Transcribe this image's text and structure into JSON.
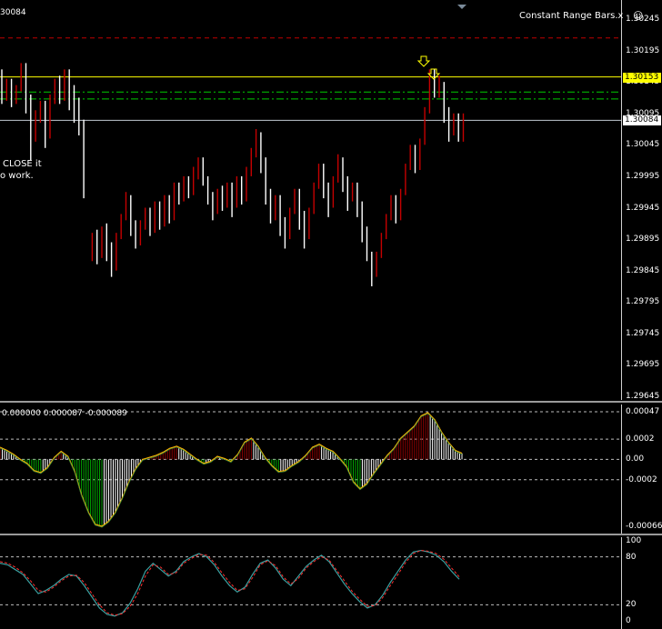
{
  "chart": {
    "symbol_fragment": "30084",
    "indicator_name": "Constant Range Bars.x",
    "smiley_icon": "smiley-icon",
    "note_line1": "CLOSE it",
    "note_line2": "o work."
  },
  "price_axis": {
    "ticks": [
      "1.30245",
      "1.30195",
      "1.30145",
      "1.30095",
      "1.30045",
      "1.29995",
      "1.29945",
      "1.29895",
      "1.29845",
      "1.29795",
      "1.29745",
      "1.29695",
      "1.29645"
    ],
    "range": [
      1.29645,
      1.30245
    ],
    "boxes": [
      {
        "label": "1.30153",
        "value": 1.30153,
        "bg": "#ffff00",
        "fg": "#000000"
      },
      {
        "label": "1.30084",
        "value": 1.30084,
        "bg": "#ffffff",
        "fg": "#000000"
      }
    ]
  },
  "levels": {
    "red_dashed": 1.30215,
    "yellow_solid": 1.30153,
    "green_dashdot_1": 1.30129,
    "green_dashdot_2": 1.30118,
    "grey_solid": 1.30084
  },
  "colors": {
    "bull": "#c40000",
    "bear": "#ffffff",
    "level_red": "#c00000",
    "level_yellow": "#ffff00",
    "level_green": "#00cc00",
    "level_grey": "#c0c8d0",
    "osc_pos": "#8b0000",
    "osc_neg": "#00aa00",
    "osc_line": "#ffb000",
    "stoch_main": "#3aa0a0",
    "stoch_signal": "#ff3030"
  },
  "oscillator": {
    "label": "0.000000 0.000087 -0.000089",
    "ticks": [
      "0.00047",
      "0.0002",
      "0.00",
      "-0.0002",
      "-0.00066"
    ],
    "range": [
      -0.00066,
      0.00047
    ],
    "levels": [
      0.00047,
      0.0002,
      0.0,
      -0.0002
    ],
    "points": [
      0.00012,
      9e-05,
      5e-05,
      0.0,
      -4e-05,
      -0.00011,
      -0.00013,
      -8e-05,
      2e-05,
      8e-05,
      3e-05,
      -0.00012,
      -0.00035,
      -0.00052,
      -0.00064,
      -0.00066,
      -0.00061,
      -0.00052,
      -0.00038,
      -0.00022,
      -9e-05,
      0.0,
      2e-05,
      4e-05,
      7e-05,
      0.00011,
      0.00013,
      0.0001,
      5e-05,
      0.0,
      -4e-05,
      -2e-05,
      3e-05,
      1e-05,
      -2e-05,
      5e-05,
      0.00017,
      0.00021,
      0.00013,
      2e-05,
      -6e-05,
      -0.00012,
      -0.00011,
      -6e-05,
      -2e-05,
      4e-05,
      0.00012,
      0.00015,
      0.00011,
      8e-05,
      1e-05,
      -7e-05,
      -0.00022,
      -0.00029,
      -0.00024,
      -0.00014,
      -5e-05,
      4e-05,
      0.00011,
      0.00021,
      0.00027,
      0.00033,
      0.00043,
      0.00046,
      0.00039,
      0.00027,
      0.00017,
      9e-05,
      6e-05
    ]
  },
  "stochastic": {
    "ticks": [
      "100",
      "80",
      "20",
      "0"
    ],
    "levels": [
      80,
      20
    ],
    "main": [
      72,
      70,
      64,
      58,
      46,
      34,
      38,
      44,
      52,
      58,
      56,
      44,
      30,
      16,
      8,
      6,
      10,
      22,
      40,
      62,
      72,
      64,
      56,
      62,
      74,
      80,
      84,
      80,
      70,
      56,
      44,
      36,
      42,
      58,
      72,
      76,
      66,
      52,
      44,
      56,
      68,
      76,
      82,
      74,
      60,
      46,
      34,
      24,
      16,
      20,
      32,
      48,
      62,
      76,
      86,
      88,
      86,
      82,
      74,
      62,
      52
    ],
    "signal": [
      74,
      72,
      67,
      60,
      50,
      38,
      36,
      42,
      50,
      56,
      57,
      48,
      34,
      20,
      10,
      7,
      9,
      18,
      34,
      56,
      70,
      67,
      58,
      60,
      72,
      78,
      83,
      82,
      73,
      60,
      48,
      38,
      40,
      54,
      70,
      75,
      69,
      55,
      46,
      53,
      66,
      74,
      80,
      76,
      63,
      50,
      37,
      27,
      18,
      19,
      29,
      44,
      58,
      73,
      84,
      88,
      87,
      84,
      77,
      66,
      55
    ]
  },
  "bars": [
    [
      1.3016,
      1.30125,
      1.30165,
      1.3011
    ],
    [
      1.30125,
      1.3014,
      1.3015,
      1.30115
    ],
    [
      1.3014,
      1.3012,
      1.3015,
      1.30105
    ],
    [
      1.3012,
      1.30135,
      1.3014,
      1.3011
    ],
    [
      1.30135,
      1.3017,
      1.30175,
      1.3013
    ],
    [
      1.3017,
      1.3012,
      1.30175,
      1.30095
    ],
    [
      1.3012,
      1.3007,
      1.30125,
      1.3002
    ],
    [
      1.3007,
      1.3009,
      1.301,
      1.3005
    ],
    [
      1.3009,
      1.3011,
      1.30115,
      1.3008
    ],
    [
      1.3011,
      1.3006,
      1.30115,
      1.3004
    ],
    [
      1.3006,
      1.3012,
      1.30125,
      1.30055
    ],
    [
      1.3012,
      1.3014,
      1.3015,
      1.3011
    ],
    [
      1.3014,
      1.3012,
      1.30155,
      1.3011
    ],
    [
      1.3012,
      1.3016,
      1.30165,
      1.30115
    ],
    [
      1.3016,
      1.3013,
      1.30165,
      1.301
    ],
    [
      1.3013,
      1.3011,
      1.3014,
      1.3008
    ],
    [
      1.3011,
      1.3008,
      1.3012,
      1.3006
    ],
    [
      1.3008,
      1.2997,
      1.30085,
      1.2996
    ],
    [
      1.29885,
      1.299,
      1.29905,
      1.2986
    ],
    [
      1.299,
      1.2987,
      1.2991,
      1.29855
    ],
    [
      1.2987,
      1.2991,
      1.29915,
      1.29865
    ],
    [
      1.2991,
      1.2988,
      1.2992,
      1.2986
    ],
    [
      1.2988,
      1.2985,
      1.2989,
      1.29835
    ],
    [
      1.2985,
      1.299,
      1.29905,
      1.29845
    ],
    [
      1.299,
      1.2993,
      1.29935,
      1.29895
    ],
    [
      1.2993,
      1.2996,
      1.2997,
      1.29925
    ],
    [
      1.2996,
      1.2992,
      1.29965,
      1.299
    ],
    [
      1.2992,
      1.2989,
      1.29925,
      1.2988
    ],
    [
      1.2989,
      1.2992,
      1.29925,
      1.29885
    ],
    [
      1.2992,
      1.2994,
      1.29945,
      1.2991
    ],
    [
      1.2994,
      1.2991,
      1.29945,
      1.299
    ],
    [
      1.2991,
      1.2995,
      1.29955,
      1.29905
    ],
    [
      1.2995,
      1.2992,
      1.29955,
      1.2991
    ],
    [
      1.2992,
      1.2996,
      1.29965,
      1.29915
    ],
    [
      1.2996,
      1.2993,
      1.29965,
      1.2992
    ],
    [
      1.2993,
      1.2998,
      1.29985,
      1.29925
    ],
    [
      1.2998,
      1.2996,
      1.29985,
      1.2995
    ],
    [
      1.2996,
      1.2999,
      1.29995,
      1.29955
    ],
    [
      1.2999,
      1.2997,
      1.29995,
      1.2996
    ],
    [
      1.2997,
      1.3,
      1.3001,
      1.29965
    ],
    [
      1.3,
      1.3002,
      1.30025,
      1.2999
    ],
    [
      1.3002,
      1.2999,
      1.30025,
      1.2998
    ],
    [
      1.2999,
      1.2996,
      1.29995,
      1.2995
    ],
    [
      1.2996,
      1.2994,
      1.2997,
      1.29925
    ],
    [
      1.2994,
      1.2997,
      1.29975,
      1.29935
    ],
    [
      1.2997,
      1.2995,
      1.2998,
      1.2994
    ],
    [
      1.2995,
      1.2998,
      1.29985,
      1.29945
    ],
    [
      1.2998,
      1.2995,
      1.29985,
      1.2993
    ],
    [
      1.2995,
      1.2999,
      1.29995,
      1.29945
    ],
    [
      1.2999,
      1.2996,
      1.29995,
      1.2995
    ],
    [
      1.2996,
      1.3,
      1.3001,
      1.29955
    ],
    [
      1.3,
      1.3003,
      1.3004,
      1.29995
    ],
    [
      1.3003,
      1.3006,
      1.3007,
      1.30025
    ],
    [
      1.3006,
      1.3002,
      1.30065,
      1.3
    ],
    [
      1.3002,
      1.2997,
      1.30025,
      1.2995
    ],
    [
      1.2997,
      1.2993,
      1.29975,
      1.2992
    ],
    [
      1.2993,
      1.2996,
      1.29965,
      1.29925
    ],
    [
      1.2996,
      1.2992,
      1.29965,
      1.299
    ],
    [
      1.2992,
      1.299,
      1.2993,
      1.2988
    ],
    [
      1.299,
      1.2994,
      1.29945,
      1.29895
    ],
    [
      1.2994,
      1.2997,
      1.29975,
      1.29935
    ],
    [
      1.2997,
      1.2993,
      1.29975,
      1.2991
    ],
    [
      1.2993,
      1.299,
      1.2994,
      1.2988
    ],
    [
      1.299,
      1.2994,
      1.29945,
      1.29895
    ],
    [
      1.2994,
      1.2998,
      1.29985,
      1.29935
    ],
    [
      1.2998,
      1.3001,
      1.30015,
      1.29975
    ],
    [
      1.3001,
      1.2998,
      1.30015,
      1.2996
    ],
    [
      1.2998,
      1.2995,
      1.29985,
      1.2993
    ],
    [
      1.2995,
      1.2999,
      1.29995,
      1.29945
    ],
    [
      1.2999,
      1.3002,
      1.3003,
      1.29985
    ],
    [
      1.3002,
      1.2999,
      1.30025,
      1.2997
    ],
    [
      1.2999,
      1.2996,
      1.29995,
      1.2994
    ],
    [
      1.2996,
      1.2998,
      1.29985,
      1.29955
    ],
    [
      1.2998,
      1.2995,
      1.29985,
      1.2993
    ],
    [
      1.2995,
      1.2991,
      1.29955,
      1.2989
    ],
    [
      1.2991,
      1.2987,
      1.29915,
      1.2986
    ],
    [
      1.2987,
      1.2984,
      1.29875,
      1.2982
    ],
    [
      1.2984,
      1.2987,
      1.29875,
      1.29835
    ],
    [
      1.2987,
      1.299,
      1.29905,
      1.29865
    ],
    [
      1.299,
      1.2993,
      1.29935,
      1.29895
    ],
    [
      1.2993,
      1.2996,
      1.29965,
      1.29925
    ],
    [
      1.2996,
      1.2993,
      1.29965,
      1.2992
    ],
    [
      1.2993,
      1.2997,
      1.29975,
      1.29925
    ],
    [
      1.2997,
      1.3001,
      1.30015,
      1.29965
    ],
    [
      1.3001,
      1.3004,
      1.30045,
      1.30005
    ],
    [
      1.3004,
      1.3001,
      1.30045,
      1.3
    ],
    [
      1.3001,
      1.3005,
      1.30055,
      1.30005
    ],
    [
      1.3005,
      1.301,
      1.30105,
      1.30045
    ],
    [
      1.301,
      1.3016,
      1.30165,
      1.30095
    ],
    [
      1.3016,
      1.3013,
      1.30165,
      1.3012
    ],
    [
      1.3013,
      1.3014,
      1.30155,
      1.3012
    ],
    [
      1.3014,
      1.301,
      1.30145,
      1.3008
    ],
    [
      1.301,
      1.3007,
      1.30105,
      1.3005
    ],
    [
      1.3007,
      1.3009,
      1.30095,
      1.3006
    ],
    [
      1.3009,
      1.3006,
      1.30095,
      1.3005
    ],
    [
      1.3006,
      1.30084,
      1.30095,
      1.3005
    ]
  ]
}
